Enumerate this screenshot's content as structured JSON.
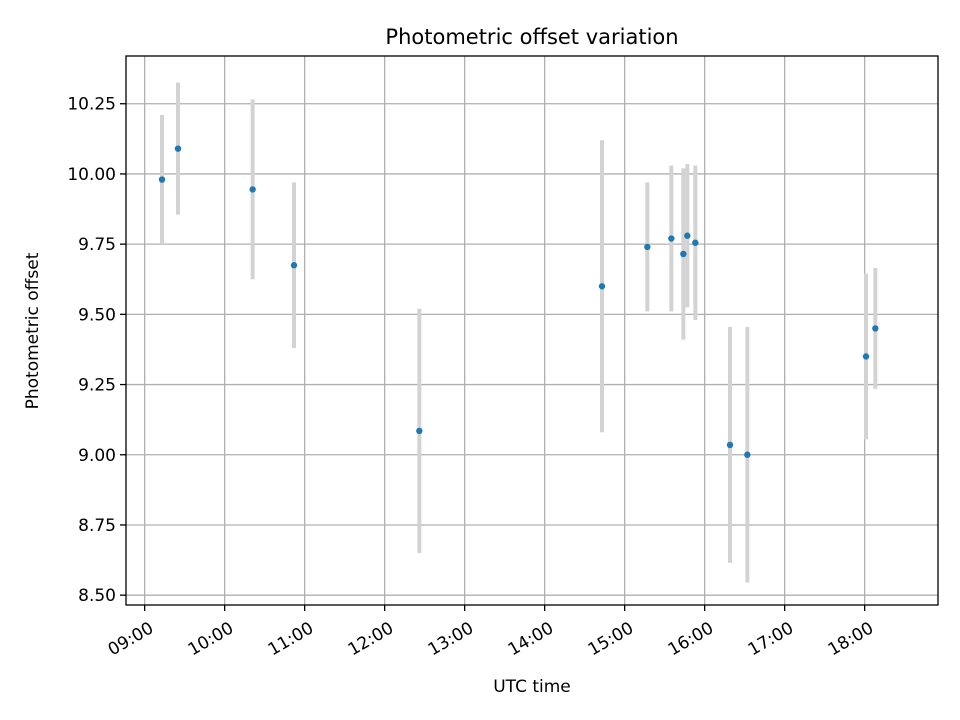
{
  "chart_data": {
    "type": "scatter",
    "title": "Photometric offset variation",
    "xlabel": "UTC time",
    "ylabel": "Photometric offset",
    "x_ticks": [
      "09:00",
      "10:00",
      "11:00",
      "12:00",
      "13:00",
      "14:00",
      "15:00",
      "16:00",
      "17:00",
      "18:00"
    ],
    "y_ticks": [
      "8.50",
      "8.75",
      "9.00",
      "9.25",
      "9.50",
      "9.75",
      "10.00",
      "10.25"
    ],
    "xlim": [
      "08:46",
      "18:55"
    ],
    "ylim": [
      8.465,
      10.42
    ],
    "grid": true,
    "marker_color": "#1f77b4",
    "errorbar_color": "#d3d3d3",
    "points": [
      {
        "x": "09:13",
        "y": 9.98,
        "yerr": 0.23
      },
      {
        "x": "09:25",
        "y": 10.09,
        "yerr": 0.235
      },
      {
        "x": "10:21",
        "y": 9.945,
        "yerr": 0.32
      },
      {
        "x": "10:52",
        "y": 9.675,
        "yerr": 0.295
      },
      {
        "x": "12:26",
        "y": 9.085,
        "yerr": 0.435
      },
      {
        "x": "14:43",
        "y": 9.6,
        "yerr": 0.52
      },
      {
        "x": "15:17",
        "y": 9.74,
        "yerr": 0.23
      },
      {
        "x": "15:35",
        "y": 9.77,
        "yerr": 0.26
      },
      {
        "x": "15:44",
        "y": 9.715,
        "yerr": 0.305
      },
      {
        "x": "15:47",
        "y": 9.78,
        "yerr": 0.255
      },
      {
        "x": "15:53",
        "y": 9.755,
        "yerr": 0.275
      },
      {
        "x": "16:19",
        "y": 9.035,
        "yerr": 0.42
      },
      {
        "x": "16:32",
        "y": 9.0,
        "yerr": 0.455
      },
      {
        "x": "18:01",
        "y": 9.35,
        "yerr": 0.295
      },
      {
        "x": "18:08",
        "y": 9.45,
        "yerr": 0.215
      }
    ]
  }
}
